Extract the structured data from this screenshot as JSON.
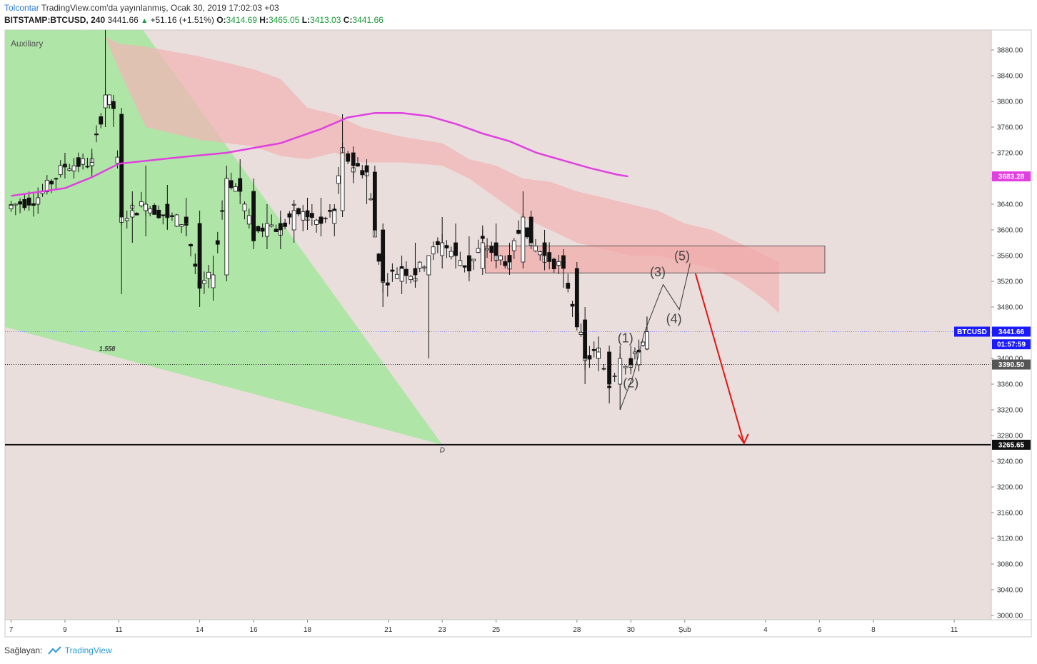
{
  "header": {
    "author": "Tolcontar",
    "published": "TradingView.com'da yayınlanmış, Ocak 30, 2019 17:02:03 +03",
    "symbol": "BITSTAMP:BTCUSD, 240",
    "last": "3441.66",
    "change": "+51.16 (+1.51%)",
    "o_label": "O:",
    "o_value": "3414.69",
    "h_label": "H:",
    "h_value": "3465.05",
    "l_label": "L:",
    "l_value": "3413.03",
    "c_label": "C:",
    "c_value": "3441.66"
  },
  "footer": {
    "shared_by": "Sağlayan:",
    "brand": "TradingView"
  },
  "colors": {
    "background": "#e9dedc",
    "green_zone": "#a8e6a0",
    "cloud_red": "#f0b6b6",
    "ma_line": "#e040e0",
    "resistance_box": "#f2aaaa",
    "arrow": "#e01818",
    "candle_bull": "#ffffff",
    "candle_bear": "#111111"
  },
  "chart_data": {
    "type": "candlestick",
    "pane_label": "Auxiliary",
    "ylim": [
      2995,
      3900
    ],
    "yticks": [
      "3880.00",
      "3840.00",
      "3800.00",
      "3760.00",
      "3720.00",
      "3680.00",
      "3640.00",
      "3600.00",
      "3560.00",
      "3520.00",
      "3480.00",
      "3440.00",
      "3400.00",
      "3360.00",
      "3320.00",
      "3280.00",
      "3240.00",
      "3200.00",
      "3160.00",
      "3120.00",
      "3080.00",
      "3040.00",
      "3000.00"
    ],
    "xticks": [
      {
        "label": "7",
        "day": 7
      },
      {
        "label": "9",
        "day": 9
      },
      {
        "label": "11",
        "day": 11
      },
      {
        "label": "14",
        "day": 14
      },
      {
        "label": "16",
        "day": 16
      },
      {
        "label": "18",
        "day": 18
      },
      {
        "label": "21",
        "day": 21
      },
      {
        "label": "23",
        "day": 23
      },
      {
        "label": "25",
        "day": 25
      },
      {
        "label": "28",
        "day": 28
      },
      {
        "label": "30",
        "day": 30
      },
      {
        "label": "Şub",
        "day": 32
      },
      {
        "label": "4",
        "day": 35
      },
      {
        "label": "6",
        "day": 37
      },
      {
        "label": "8",
        "day": 39
      },
      {
        "label": "11",
        "day": 42
      }
    ],
    "ohlc_anchors": [
      [
        7.0,
        3633,
        3645,
        3628,
        3638
      ],
      [
        8.0,
        3640,
        3660,
        3625,
        3650
      ],
      [
        9.0,
        3700,
        3720,
        3680,
        3700
      ],
      [
        10.0,
        3700,
        3720,
        3690,
        3705
      ],
      [
        10.5,
        3790,
        3990,
        3760,
        3810
      ],
      [
        10.8,
        3800,
        3810,
        3760,
        3790
      ],
      [
        11.1,
        3780,
        3790,
        3500,
        3620
      ],
      [
        11.5,
        3620,
        3660,
        3580,
        3630
      ],
      [
        12.0,
        3630,
        3700,
        3590,
        3640
      ],
      [
        12.8,
        3640,
        3670,
        3600,
        3620
      ],
      [
        13.5,
        3620,
        3650,
        3590,
        3610
      ],
      [
        14.0,
        3610,
        3630,
        3480,
        3510
      ],
      [
        14.5,
        3510,
        3560,
        3490,
        3530
      ],
      [
        15.0,
        3530,
        3700,
        3520,
        3680
      ],
      [
        15.5,
        3680,
        3710,
        3640,
        3660
      ],
      [
        16.0,
        3660,
        3680,
        3570,
        3590
      ],
      [
        16.5,
        3590,
        3640,
        3570,
        3610
      ],
      [
        17.0,
        3610,
        3630,
        3570,
        3600
      ],
      [
        17.5,
        3600,
        3640,
        3580,
        3630
      ],
      [
        18.0,
        3630,
        3650,
        3600,
        3620
      ],
      [
        18.5,
        3620,
        3650,
        3590,
        3610
      ],
      [
        19.0,
        3610,
        3640,
        3590,
        3630
      ],
      [
        19.3,
        3630,
        3780,
        3620,
        3720
      ],
      [
        19.7,
        3720,
        3730,
        3680,
        3700
      ],
      [
        20.2,
        3700,
        3710,
        3640,
        3690
      ],
      [
        20.5,
        3690,
        3700,
        3590,
        3600
      ],
      [
        20.8,
        3600,
        3610,
        3480,
        3520
      ],
      [
        21.5,
        3520,
        3560,
        3500,
        3540
      ],
      [
        22.0,
        3540,
        3580,
        3510,
        3530
      ],
      [
        22.5,
        3530,
        3560,
        3400,
        3560
      ],
      [
        23.0,
        3560,
        3620,
        3540,
        3580
      ],
      [
        23.5,
        3580,
        3610,
        3540,
        3560
      ],
      [
        24.0,
        3560,
        3590,
        3520,
        3540
      ],
      [
        24.5,
        3540,
        3600,
        3530,
        3580
      ],
      [
        25.0,
        3580,
        3610,
        3540,
        3560
      ],
      [
        25.5,
        3560,
        3580,
        3530,
        3550
      ],
      [
        26.0,
        3550,
        3660,
        3540,
        3620
      ],
      [
        26.3,
        3620,
        3630,
        3570,
        3580
      ],
      [
        26.8,
        3580,
        3600,
        3550,
        3560
      ],
      [
        27.5,
        3560,
        3570,
        3510,
        3540
      ],
      [
        28.0,
        3540,
        3550,
        3450,
        3460
      ],
      [
        28.3,
        3460,
        3480,
        3360,
        3400
      ],
      [
        28.8,
        3400,
        3430,
        3380,
        3410
      ],
      [
        29.2,
        3410,
        3420,
        3330,
        3360
      ],
      [
        29.6,
        3360,
        3420,
        3320,
        3400
      ],
      [
        30.0,
        3400,
        3420,
        3380,
        3390
      ],
      [
        30.3,
        3390,
        3420,
        3380,
        3410
      ],
      [
        30.6,
        3414.69,
        3465.05,
        3413.03,
        3441.66
      ]
    ],
    "ema_line": [
      [
        7,
        3653
      ],
      [
        9,
        3665
      ],
      [
        10,
        3682
      ],
      [
        11,
        3703
      ],
      [
        13,
        3712
      ],
      [
        15,
        3720
      ],
      [
        17,
        3735
      ],
      [
        18.5,
        3757
      ],
      [
        19.5,
        3775
      ],
      [
        20.5,
        3782
      ],
      [
        21.5,
        3782
      ],
      [
        22.5,
        3777
      ],
      [
        23.5,
        3765
      ],
      [
        24.5,
        3750
      ],
      [
        25.5,
        3738
      ],
      [
        26.5,
        3720
      ],
      [
        27.5,
        3708
      ],
      [
        28.5,
        3696
      ],
      [
        29.5,
        3686
      ],
      [
        29.9,
        3683.28
      ]
    ],
    "cloud": [
      [
        9.2,
        3900,
        3900
      ],
      [
        10.5,
        3900,
        3900
      ],
      [
        11.0,
        3890,
        3850
      ],
      [
        12.0,
        3885,
        3760
      ],
      [
        14.0,
        3870,
        3740
      ],
      [
        16.0,
        3850,
        3730
      ],
      [
        17.0,
        3835,
        3715
      ],
      [
        18.0,
        3790,
        3710
      ],
      [
        19.0,
        3780,
        3720
      ],
      [
        20.0,
        3760,
        3705
      ],
      [
        21.5,
        3745,
        3705
      ],
      [
        23.0,
        3735,
        3700
      ],
      [
        24.0,
        3710,
        3680
      ],
      [
        25.0,
        3700,
        3650
      ],
      [
        26.0,
        3680,
        3620
      ],
      [
        27.0,
        3675,
        3600
      ],
      [
        28.0,
        3660,
        3580
      ],
      [
        29.0,
        3650,
        3570
      ],
      [
        30.0,
        3640,
        3560
      ],
      [
        31.0,
        3630,
        3560
      ],
      [
        32.0,
        3610,
        3550
      ],
      [
        33.0,
        3600,
        3540
      ],
      [
        34.0,
        3580,
        3520
      ],
      [
        35.0,
        3560,
        3490
      ],
      [
        35.5,
        3550,
        3470
      ]
    ],
    "resistance_box": {
      "day_start": 24.6,
      "day_end": 37.2,
      "price_top": 3575,
      "price_bottom": 3533
    },
    "wave_path": [
      [
        29.6,
        3320
      ],
      [
        30.1,
        3375
      ],
      [
        30.5,
        3440
      ],
      [
        31.2,
        3515
      ],
      [
        31.8,
        3476
      ],
      [
        32.2,
        3548
      ]
    ],
    "wave_labels": [
      {
        "label": "(1)",
        "day": 29.8,
        "price": 3425
      },
      {
        "label": "(2)",
        "day": 30.0,
        "price": 3355
      },
      {
        "label": "(3)",
        "day": 31.0,
        "price": 3528
      },
      {
        "label": "(4)",
        "day": 31.6,
        "price": 3455
      },
      {
        "label": "(5)",
        "day": 31.9,
        "price": 3553
      }
    ],
    "arrow": {
      "from": [
        32.4,
        3532
      ],
      "to": [
        34.2,
        3268
      ]
    },
    "fib_label": {
      "text": "1.558",
      "day": 10.0,
      "price": 3415
    },
    "point_label": {
      "text": "D",
      "day": 23.0,
      "price": 3257
    },
    "support_level": 3265.65,
    "dotted_level": 3390.5,
    "price_labels": [
      {
        "text": "3683.28",
        "price": 3683.28,
        "color": "#e040e0"
      },
      {
        "text": "3441.66",
        "price": 3441.66,
        "color": "#1a1aff"
      },
      {
        "text": "01:57:59",
        "price": 3422,
        "color": "#1a1aff"
      },
      {
        "text": "3390.50",
        "price": 3390.5,
        "color": "#555555"
      },
      {
        "text": "3265.65",
        "price": 3265.65,
        "color": "#111111"
      }
    ],
    "symbol_tag": "BTCUSD"
  }
}
